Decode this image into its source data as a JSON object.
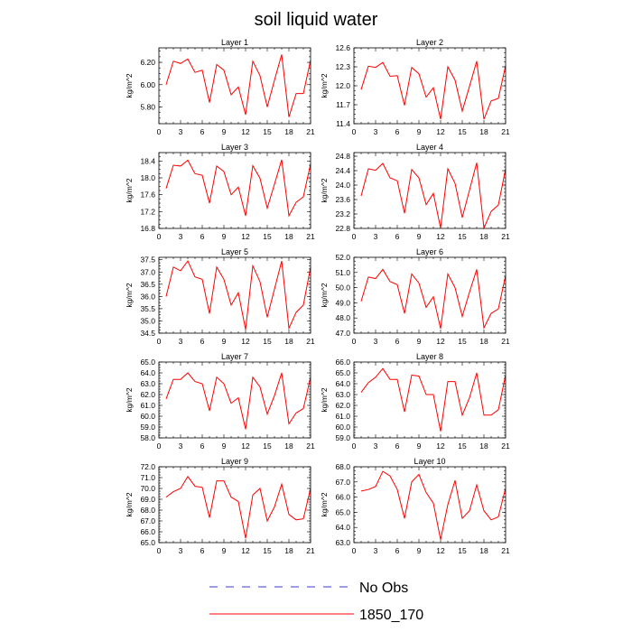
{
  "title": "soil liquid water",
  "legend": {
    "position": "bottom",
    "items": [
      {
        "label": "No Obs",
        "color": "#3b3bc8",
        "style": "dashed"
      },
      {
        "label": "1850_170",
        "color": "#ff0000",
        "style": "solid"
      }
    ]
  },
  "chart_data": [
    {
      "type": "line",
      "title": "Layer 1",
      "ylabel": "kg/m^2",
      "x": [
        1,
        2,
        3,
        4,
        5,
        6,
        7,
        8,
        9,
        10,
        11,
        12,
        13,
        14,
        15,
        16,
        17,
        18,
        19,
        20,
        21
      ],
      "xlim": [
        0,
        21
      ],
      "xticks": [
        "0",
        "3",
        "6",
        "9",
        "12",
        "15",
        "18",
        "21"
      ],
      "ylim": [
        5.65,
        6.33
      ],
      "yticks": [
        "5.80",
        "6.00",
        "6.20"
      ],
      "series": [
        {
          "color": "#ff0000",
          "values": [
            6.0,
            6.21,
            6.19,
            6.23,
            6.11,
            6.13,
            5.84,
            6.18,
            6.13,
            5.91,
            5.98,
            5.73,
            6.21,
            6.08,
            5.8,
            6.04,
            6.27,
            5.71,
            5.92,
            5.92,
            6.22
          ]
        }
      ]
    },
    {
      "type": "line",
      "title": "Layer 2",
      "ylabel": "kg/m^2",
      "x": [
        1,
        2,
        3,
        4,
        5,
        6,
        7,
        8,
        9,
        10,
        11,
        12,
        13,
        14,
        15,
        16,
        17,
        18,
        19,
        20,
        21
      ],
      "xlim": [
        0,
        21
      ],
      "xticks": [
        "0",
        "3",
        "6",
        "9",
        "12",
        "15",
        "18",
        "21"
      ],
      "ylim": [
        11.4,
        12.6
      ],
      "yticks": [
        "11.4",
        "11.7",
        "12.0",
        "12.3",
        "12.6"
      ],
      "series": [
        {
          "color": "#ff0000",
          "values": [
            11.94,
            12.31,
            12.29,
            12.37,
            12.15,
            12.16,
            11.69,
            12.29,
            12.19,
            11.82,
            11.97,
            11.47,
            12.3,
            12.09,
            11.6,
            11.99,
            12.39,
            11.47,
            11.76,
            11.8,
            12.32
          ]
        }
      ]
    },
    {
      "type": "line",
      "title": "Layer 3",
      "ylabel": "kg/m^2",
      "x": [
        1,
        2,
        3,
        4,
        5,
        6,
        7,
        8,
        9,
        10,
        11,
        12,
        13,
        14,
        15,
        16,
        17,
        18,
        19,
        20,
        21
      ],
      "xlim": [
        0,
        21
      ],
      "xticks": [
        "0",
        "3",
        "6",
        "9",
        "12",
        "15",
        "18",
        "21"
      ],
      "ylim": [
        16.8,
        18.6
      ],
      "yticks": [
        "16.8",
        "17.2",
        "17.6",
        "18.0",
        "18.4"
      ],
      "series": [
        {
          "color": "#ff0000",
          "values": [
            17.75,
            18.3,
            18.28,
            18.42,
            18.1,
            18.06,
            17.4,
            18.28,
            18.15,
            17.6,
            17.78,
            17.1,
            18.29,
            17.99,
            17.28,
            17.85,
            18.43,
            17.1,
            17.42,
            17.55,
            18.33
          ]
        }
      ]
    },
    {
      "type": "line",
      "title": "Layer 4",
      "ylabel": "kg/m^2",
      "x": [
        1,
        2,
        3,
        4,
        5,
        6,
        7,
        8,
        9,
        10,
        11,
        12,
        13,
        14,
        15,
        16,
        17,
        18,
        19,
        20,
        21
      ],
      "xlim": [
        0,
        21
      ],
      "xticks": [
        "0",
        "3",
        "6",
        "9",
        "12",
        "15",
        "18",
        "21"
      ],
      "ylim": [
        22.8,
        24.9
      ],
      "yticks": [
        "22.8",
        "23.2",
        "23.6",
        "24.0",
        "24.4",
        "24.8"
      ],
      "series": [
        {
          "color": "#ff0000",
          "values": [
            23.7,
            24.45,
            24.41,
            24.6,
            24.2,
            24.12,
            23.22,
            24.43,
            24.2,
            23.46,
            23.77,
            22.81,
            24.45,
            24.05,
            23.1,
            23.86,
            24.62,
            22.81,
            23.27,
            23.45,
            24.45
          ]
        }
      ]
    },
    {
      "type": "line",
      "title": "Layer 5",
      "ylabel": "kg/m^2",
      "x": [
        1,
        2,
        3,
        4,
        5,
        6,
        7,
        8,
        9,
        10,
        11,
        12,
        13,
        14,
        15,
        16,
        17,
        18,
        19,
        20,
        21
      ],
      "xlim": [
        0,
        21
      ],
      "xticks": [
        "0",
        "3",
        "6",
        "9",
        "12",
        "15",
        "18",
        "21"
      ],
      "ylim": [
        34.5,
        37.6
      ],
      "yticks": [
        "34.5",
        "35.0",
        "35.5",
        "36.0",
        "36.5",
        "37.0",
        "37.5"
      ],
      "series": [
        {
          "color": "#ff0000",
          "values": [
            36.0,
            37.2,
            37.05,
            37.45,
            36.8,
            36.7,
            35.3,
            37.2,
            36.7,
            35.65,
            36.15,
            34.65,
            37.25,
            36.6,
            35.15,
            36.3,
            37.45,
            34.7,
            35.35,
            35.65,
            37.2
          ]
        }
      ]
    },
    {
      "type": "line",
      "title": "Layer 6",
      "ylabel": "kg/m^2",
      "x": [
        1,
        2,
        3,
        4,
        5,
        6,
        7,
        8,
        9,
        10,
        11,
        12,
        13,
        14,
        15,
        16,
        17,
        18,
        19,
        20,
        21
      ],
      "xlim": [
        0,
        21
      ],
      "xticks": [
        "0",
        "3",
        "6",
        "9",
        "12",
        "15",
        "18",
        "21"
      ],
      "ylim": [
        47.0,
        52.0
      ],
      "yticks": [
        "47.0",
        "48.0",
        "49.0",
        "50.0",
        "51.0",
        "52.0"
      ],
      "series": [
        {
          "color": "#ff0000",
          "values": [
            49.1,
            50.7,
            50.6,
            51.2,
            50.4,
            50.2,
            48.3,
            50.9,
            50.3,
            48.7,
            49.4,
            47.3,
            50.9,
            50.0,
            48.1,
            49.7,
            51.2,
            47.35,
            48.3,
            48.6,
            50.8
          ]
        }
      ]
    },
    {
      "type": "line",
      "title": "Layer 7",
      "ylabel": "kg/m^2",
      "x": [
        1,
        2,
        3,
        4,
        5,
        6,
        7,
        8,
        9,
        10,
        11,
        12,
        13,
        14,
        15,
        16,
        17,
        18,
        19,
        20,
        21
      ],
      "xlim": [
        0,
        21
      ],
      "xticks": [
        "0",
        "3",
        "6",
        "9",
        "12",
        "15",
        "18",
        "21"
      ],
      "ylim": [
        58.0,
        65.0
      ],
      "yticks": [
        "58.0",
        "59.0",
        "60.0",
        "61.0",
        "62.0",
        "63.0",
        "64.0",
        "65.0"
      ],
      "series": [
        {
          "color": "#ff0000",
          "values": [
            61.6,
            63.4,
            63.4,
            64.0,
            63.2,
            63.0,
            60.5,
            63.6,
            63.0,
            61.2,
            61.7,
            58.8,
            63.6,
            62.7,
            60.2,
            61.9,
            64.0,
            59.3,
            60.3,
            60.7,
            63.6
          ]
        }
      ]
    },
    {
      "type": "line",
      "title": "Layer 8",
      "ylabel": "kg/m^2",
      "x": [
        1,
        2,
        3,
        4,
        5,
        6,
        7,
        8,
        9,
        10,
        11,
        12,
        13,
        14,
        15,
        16,
        17,
        18,
        19,
        20,
        21
      ],
      "xlim": [
        0,
        21
      ],
      "xticks": [
        "0",
        "3",
        "6",
        "9",
        "12",
        "15",
        "18",
        "21"
      ],
      "ylim": [
        59.0,
        66.0
      ],
      "yticks": [
        "59.0",
        "60.0",
        "61.0",
        "62.0",
        "63.0",
        "64.0",
        "65.0",
        "66.0"
      ],
      "series": [
        {
          "color": "#ff0000",
          "values": [
            63.2,
            64.1,
            64.6,
            65.4,
            64.4,
            64.4,
            61.4,
            64.8,
            64.7,
            63.0,
            63.0,
            59.6,
            64.2,
            64.2,
            61.1,
            62.7,
            65.0,
            61.1,
            61.1,
            61.6,
            64.8
          ]
        }
      ]
    },
    {
      "type": "line",
      "title": "Layer 9",
      "ylabel": "kg/m^2",
      "x": [
        1,
        2,
        3,
        4,
        5,
        6,
        7,
        8,
        9,
        10,
        11,
        12,
        13,
        14,
        15,
        16,
        17,
        18,
        19,
        20,
        21
      ],
      "xlim": [
        0,
        21
      ],
      "xticks": [
        "0",
        "3",
        "6",
        "9",
        "12",
        "15",
        "18",
        "21"
      ],
      "ylim": [
        65.0,
        72.0
      ],
      "yticks": [
        "65.0",
        "66.0",
        "67.0",
        "68.0",
        "69.0",
        "70.0",
        "71.0",
        "72.0"
      ],
      "series": [
        {
          "color": "#ff0000",
          "values": [
            69.2,
            69.7,
            70.0,
            71.1,
            70.2,
            70.1,
            67.3,
            70.7,
            70.7,
            69.2,
            68.8,
            65.4,
            69.4,
            70.0,
            67.0,
            68.3,
            70.4,
            67.6,
            67.1,
            67.2,
            70.0
          ]
        }
      ]
    },
    {
      "type": "line",
      "title": "Layer 10",
      "ylabel": "kg/m^2",
      "x": [
        1,
        2,
        3,
        4,
        5,
        6,
        7,
        8,
        9,
        10,
        11,
        12,
        13,
        14,
        15,
        16,
        17,
        18,
        19,
        20,
        21
      ],
      "xlim": [
        0,
        21
      ],
      "xticks": [
        "0",
        "3",
        "6",
        "9",
        "12",
        "15",
        "18",
        "21"
      ],
      "ylim": [
        63.0,
        68.0
      ],
      "yticks": [
        "63.0",
        "64.0",
        "65.0",
        "66.0",
        "67.0",
        "68.0"
      ],
      "series": [
        {
          "color": "#ff0000",
          "values": [
            66.4,
            66.5,
            66.7,
            67.7,
            67.4,
            66.5,
            64.6,
            67.0,
            67.5,
            66.3,
            65.6,
            63.2,
            65.5,
            67.1,
            64.6,
            65.1,
            66.8,
            65.1,
            64.5,
            64.7,
            66.6
          ]
        }
      ]
    }
  ]
}
